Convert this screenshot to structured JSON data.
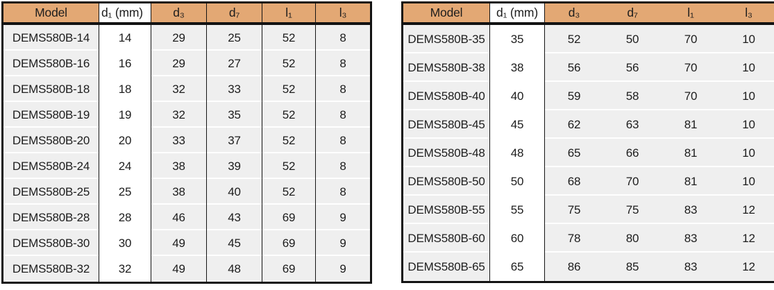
{
  "colors": {
    "header_bg": "#e3a874",
    "row_bg": "#efefef",
    "border": "#131313",
    "separator": "#ffffff"
  },
  "left_table": {
    "headers": [
      "Model",
      "d₁ (mm)",
      "d₃",
      "d₇",
      "l₁",
      "l₃"
    ],
    "rows": [
      [
        "DEMS580B-14",
        "14",
        "29",
        "25",
        "52",
        "8"
      ],
      [
        "DEMS580B-16",
        "16",
        "29",
        "27",
        "52",
        "8"
      ],
      [
        "DEMS580B-18",
        "18",
        "32",
        "33",
        "52",
        "8"
      ],
      [
        "DEMS580B-19",
        "19",
        "32",
        "35",
        "52",
        "8"
      ],
      [
        "DEMS580B-20",
        "20",
        "33",
        "37",
        "52",
        "8"
      ],
      [
        "DEMS580B-24",
        "24",
        "38",
        "39",
        "52",
        "8"
      ],
      [
        "DEMS580B-25",
        "25",
        "38",
        "40",
        "52",
        "8"
      ],
      [
        "DEMS580B-28",
        "28",
        "46",
        "43",
        "69",
        "9"
      ],
      [
        "DEMS580B-30",
        "30",
        "49",
        "45",
        "69",
        "9"
      ],
      [
        "DEMS580B-32",
        "32",
        "49",
        "48",
        "69",
        "9"
      ]
    ]
  },
  "right_table": {
    "headers": [
      "Model",
      "d₁ (mm)",
      "d₃",
      "d₇",
      "l₁",
      "l₃"
    ],
    "rows": [
      [
        "DEMS580B-35",
        "35",
        "52",
        "50",
        "70",
        "10"
      ],
      [
        "DEMS580B-38",
        "38",
        "56",
        "56",
        "70",
        "10"
      ],
      [
        "DEMS580B-40",
        "40",
        "59",
        "58",
        "70",
        "10"
      ],
      [
        "DEMS580B-45",
        "45",
        "62",
        "63",
        "81",
        "10"
      ],
      [
        "DEMS580B-48",
        "48",
        "65",
        "66",
        "81",
        "10"
      ],
      [
        "DEMS580B-50",
        "50",
        "68",
        "70",
        "81",
        "10"
      ],
      [
        "DEMS580B-55",
        "55",
        "75",
        "75",
        "83",
        "12"
      ],
      [
        "DEMS580B-60",
        "60",
        "78",
        "80",
        "83",
        "12"
      ],
      [
        "DEMS580B-65",
        "65",
        "86",
        "85",
        "83",
        "12"
      ]
    ]
  }
}
